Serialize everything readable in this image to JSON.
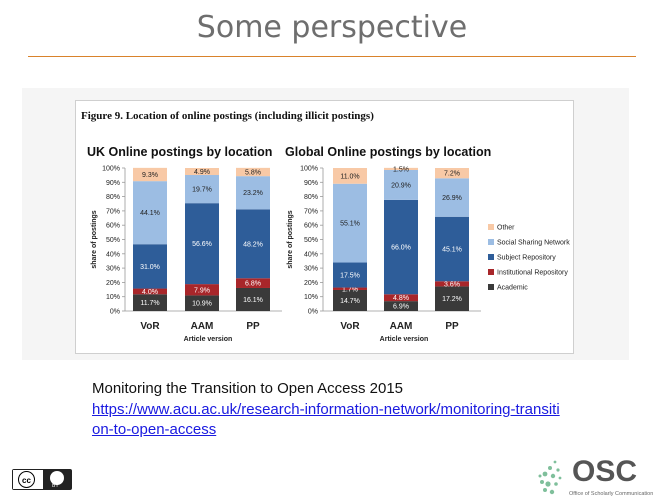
{
  "slide": {
    "title": "Some perspective",
    "figure_caption": "Figure 9.  Location of online postings (including illicit postings)",
    "reference_title": "Monitoring the Transition to Open Access 2015",
    "reference_link": "https://www.acu.ac.uk/research-information-network/monitoring-transition-to-open-access",
    "license_badge": "cc",
    "license_by": "BY",
    "org_logo": "OSC",
    "org_name": "Office of Scholarly Communication"
  },
  "colors": {
    "Other": "#f8c9a6",
    "Social Sharing Network": "#9cbde3",
    "Subject Repository": "#2e5d99",
    "Institutional Repository": "#a8262a",
    "Academic": "#3a3a3a",
    "accent_rule": "#d9822b"
  },
  "chart_data": [
    {
      "type": "bar",
      "stacked": true,
      "title": "UK Online postings by location",
      "xlabel": "Article version",
      "ylabel": "share of postings",
      "ylim": [
        0,
        100
      ],
      "yticks": [
        "0%",
        "10%",
        "20%",
        "30%",
        "40%",
        "50%",
        "60%",
        "70%",
        "80%",
        "90%",
        "100%"
      ],
      "categories": [
        "VoR",
        "AAM",
        "PP"
      ],
      "series": [
        {
          "name": "Academic",
          "values": [
            11.7,
            10.9,
            16.1
          ],
          "labels": [
            "11.7%",
            "10.9%",
            "16.1%"
          ]
        },
        {
          "name": "Institutional Repository",
          "values": [
            4.0,
            7.9,
            6.8
          ],
          "labels": [
            "4.0%",
            "7.9%",
            "6.8%"
          ]
        },
        {
          "name": "Subject Repository",
          "values": [
            31.0,
            56.6,
            48.2
          ],
          "labels": [
            "31.0%",
            "56.6%",
            "48.2%"
          ]
        },
        {
          "name": "Social Sharing Network",
          "values": [
            44.1,
            19.7,
            23.2
          ],
          "labels": [
            "44.1%",
            "19.7%",
            "23.2%"
          ]
        },
        {
          "name": "Other",
          "values": [
            9.3,
            4.9,
            5.8
          ],
          "labels": [
            "9.3%",
            "4.9%",
            "5.8%"
          ]
        }
      ]
    },
    {
      "type": "bar",
      "stacked": true,
      "title": "Global Online postings by location",
      "xlabel": "Article version",
      "ylabel": "share of postings",
      "ylim": [
        0,
        100
      ],
      "yticks": [
        "0%",
        "10%",
        "20%",
        "30%",
        "40%",
        "50%",
        "60%",
        "70%",
        "80%",
        "90%",
        "100%"
      ],
      "categories": [
        "VoR",
        "AAM",
        "PP"
      ],
      "legend_position": "right",
      "legend": [
        "Other",
        "Social Sharing Network",
        "Subject Repository",
        "Institutional Repository",
        "Academic"
      ],
      "series": [
        {
          "name": "Academic",
          "values": [
            14.7,
            6.9,
            17.2
          ],
          "labels": [
            "14.7%",
            "6.9%",
            "17.2%"
          ]
        },
        {
          "name": "Institutional Repository",
          "values": [
            1.7,
            4.8,
            3.6
          ],
          "labels": [
            "1.7%",
            "4.8%",
            "3.6%"
          ]
        },
        {
          "name": "Subject Repository",
          "values": [
            17.5,
            66.0,
            45.1
          ],
          "labels": [
            "17.5%",
            "66.0%",
            "45.1%"
          ]
        },
        {
          "name": "Social Sharing Network",
          "values": [
            55.1,
            20.9,
            26.9
          ],
          "labels": [
            "55.1%",
            "20.9%",
            "26.9%"
          ]
        },
        {
          "name": "Other",
          "values": [
            11.0,
            1.5,
            7.2
          ],
          "labels": [
            "11.0%",
            "1.5%",
            "7.2%"
          ]
        }
      ]
    }
  ]
}
